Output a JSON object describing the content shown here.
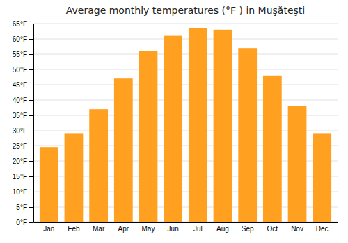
{
  "chart_data": {
    "type": "bar",
    "title": "Average monthly temperatures (°F ) in Muşăteşti",
    "categories": [
      "Jan",
      "Feb",
      "Mar",
      "Apr",
      "May",
      "Jun",
      "Jul",
      "Aug",
      "Sep",
      "Oct",
      "Nov",
      "Dec"
    ],
    "values": [
      24.5,
      29.0,
      37.0,
      47.0,
      56.0,
      61.0,
      63.5,
      63.0,
      57.0,
      48.0,
      38.0,
      29.0
    ],
    "color": "#FFA020",
    "ylim": [
      0,
      65
    ],
    "yticks": [
      {
        "value": 0,
        "label": "0°F"
      },
      {
        "value": 5,
        "label": "5°F"
      },
      {
        "value": 10,
        "label": "10°F"
      },
      {
        "value": 15,
        "label": "15°F"
      },
      {
        "value": 20,
        "label": "20°F"
      },
      {
        "value": 25,
        "label": "25°F"
      },
      {
        "value": 30,
        "label": "30°F"
      },
      {
        "value": 35,
        "label": "35°F"
      },
      {
        "value": 40,
        "label": "40°F"
      },
      {
        "value": 45,
        "label": "45°F"
      },
      {
        "value": 50,
        "label": "50°F"
      },
      {
        "value": 55,
        "label": "55°F"
      },
      {
        "value": 60,
        "label": "60°F"
      },
      {
        "value": 65,
        "label": "65°F"
      }
    ],
    "grid": true
  }
}
